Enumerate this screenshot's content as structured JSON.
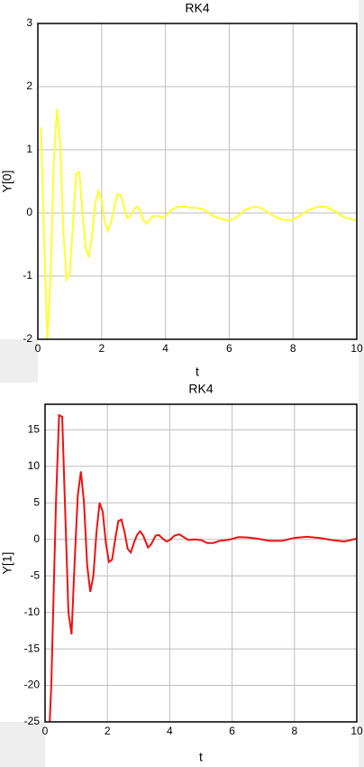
{
  "chart_data": [
    {
      "type": "line",
      "title": "RK4",
      "x_label": "t",
      "y_label": "Y[0]",
      "xlim": [
        0,
        10
      ],
      "xticks": [
        0,
        2,
        4,
        6,
        8,
        10
      ],
      "ylim": [
        -2,
        3
      ],
      "yticks": [
        -2,
        -1,
        0,
        1,
        2,
        3
      ],
      "grid": true,
      "x": [
        0.1,
        0.2,
        0.3,
        0.4,
        0.5,
        0.6,
        0.7,
        0.8,
        0.9,
        1.0,
        1.1,
        1.2,
        1.3,
        1.4,
        1.5,
        1.6,
        1.7,
        1.8,
        1.9,
        2.0,
        2.1,
        2.2,
        2.3,
        2.4,
        2.5,
        2.6,
        2.7,
        2.8,
        2.9,
        3.0,
        3.1,
        3.2,
        3.3,
        3.4,
        3.5,
        3.6,
        3.8,
        3.9,
        4.0,
        4.2,
        4.4,
        4.6,
        4.8,
        5.0,
        5.2,
        5.5,
        5.8,
        6.0,
        6.2,
        6.5,
        6.8,
        7.0,
        7.3,
        7.6,
        7.9,
        8.2,
        8.5,
        8.8,
        9.0,
        9.3,
        9.6,
        10
      ],
      "series": [
        {
          "name": "Y[0]",
          "color": "#ffff33",
          "values": [
            1.35,
            -0.5,
            -2.0,
            -1.0,
            0.8,
            1.65,
            1.1,
            -0.3,
            -1.05,
            -0.95,
            -0.2,
            0.62,
            0.65,
            0.0,
            -0.55,
            -0.7,
            -0.35,
            0.15,
            0.35,
            0.2,
            -0.15,
            -0.28,
            -0.15,
            0.1,
            0.3,
            0.28,
            0.1,
            -0.08,
            -0.05,
            0.05,
            0.1,
            0.05,
            -0.1,
            -0.17,
            -0.12,
            -0.05,
            -0.05,
            -0.08,
            -0.05,
            0.05,
            0.1,
            0.1,
            0.08,
            0.08,
            0.05,
            -0.05,
            -0.1,
            -0.12,
            -0.08,
            0.05,
            0.1,
            0.08,
            -0.02,
            -0.1,
            -0.12,
            -0.05,
            0.05,
            0.1,
            0.1,
            0.03,
            -0.07,
            -0.12
          ]
        }
      ]
    },
    {
      "type": "line",
      "title": "RK4",
      "x_label": "t",
      "y_label": "Y[1]",
      "xlim": [
        0,
        10
      ],
      "xticks": [
        0,
        2,
        4,
        6,
        8,
        10
      ],
      "ylim": [
        -25,
        18.5
      ],
      "yticks": [
        -25,
        -20,
        -15,
        -10,
        -5,
        0,
        5,
        10,
        15
      ],
      "grid": true,
      "x": [
        0.15,
        0.2,
        0.35,
        0.45,
        0.55,
        0.6,
        0.75,
        0.85,
        0.95,
        1.05,
        1.15,
        1.25,
        1.35,
        1.45,
        1.55,
        1.65,
        1.75,
        1.85,
        1.95,
        2.05,
        2.15,
        2.25,
        2.35,
        2.45,
        2.55,
        2.65,
        2.75,
        2.85,
        2.95,
        3.05,
        3.15,
        3.3,
        3.4,
        3.55,
        3.65,
        3.8,
        3.9,
        4.0,
        4.15,
        4.3,
        4.45,
        4.6,
        4.8,
        5.0,
        5.2,
        5.4,
        5.6,
        5.9,
        6.2,
        6.5,
        6.8,
        7.2,
        7.6,
        8.0,
        8.4,
        8.8,
        9.2,
        9.6,
        10
      ],
      "series": [
        {
          "name": "Y[1]",
          "color": "#ee1111",
          "values": [
            -25,
            -20,
            5,
            17,
            16.8,
            10,
            -10,
            -13,
            -3,
            6,
            9.3,
            5,
            -3.5,
            -7.2,
            -5,
            1,
            5,
            3.8,
            -0.5,
            -3.1,
            -2.8,
            0,
            2.5,
            2.7,
            1,
            -1.3,
            -1.8,
            -0.5,
            0.6,
            1.1,
            0.5,
            -1.1,
            -0.7,
            0.5,
            0.6,
            0,
            -0.3,
            -0.1,
            0.5,
            0.7,
            0.3,
            -0.1,
            0,
            -0.1,
            -0.5,
            -0.5,
            -0.2,
            -0.05,
            0.3,
            0.25,
            0.1,
            -0.2,
            -0.2,
            0.2,
            0.35,
            0.2,
            -0.1,
            -0.3,
            0.1
          ]
        }
      ]
    }
  ]
}
